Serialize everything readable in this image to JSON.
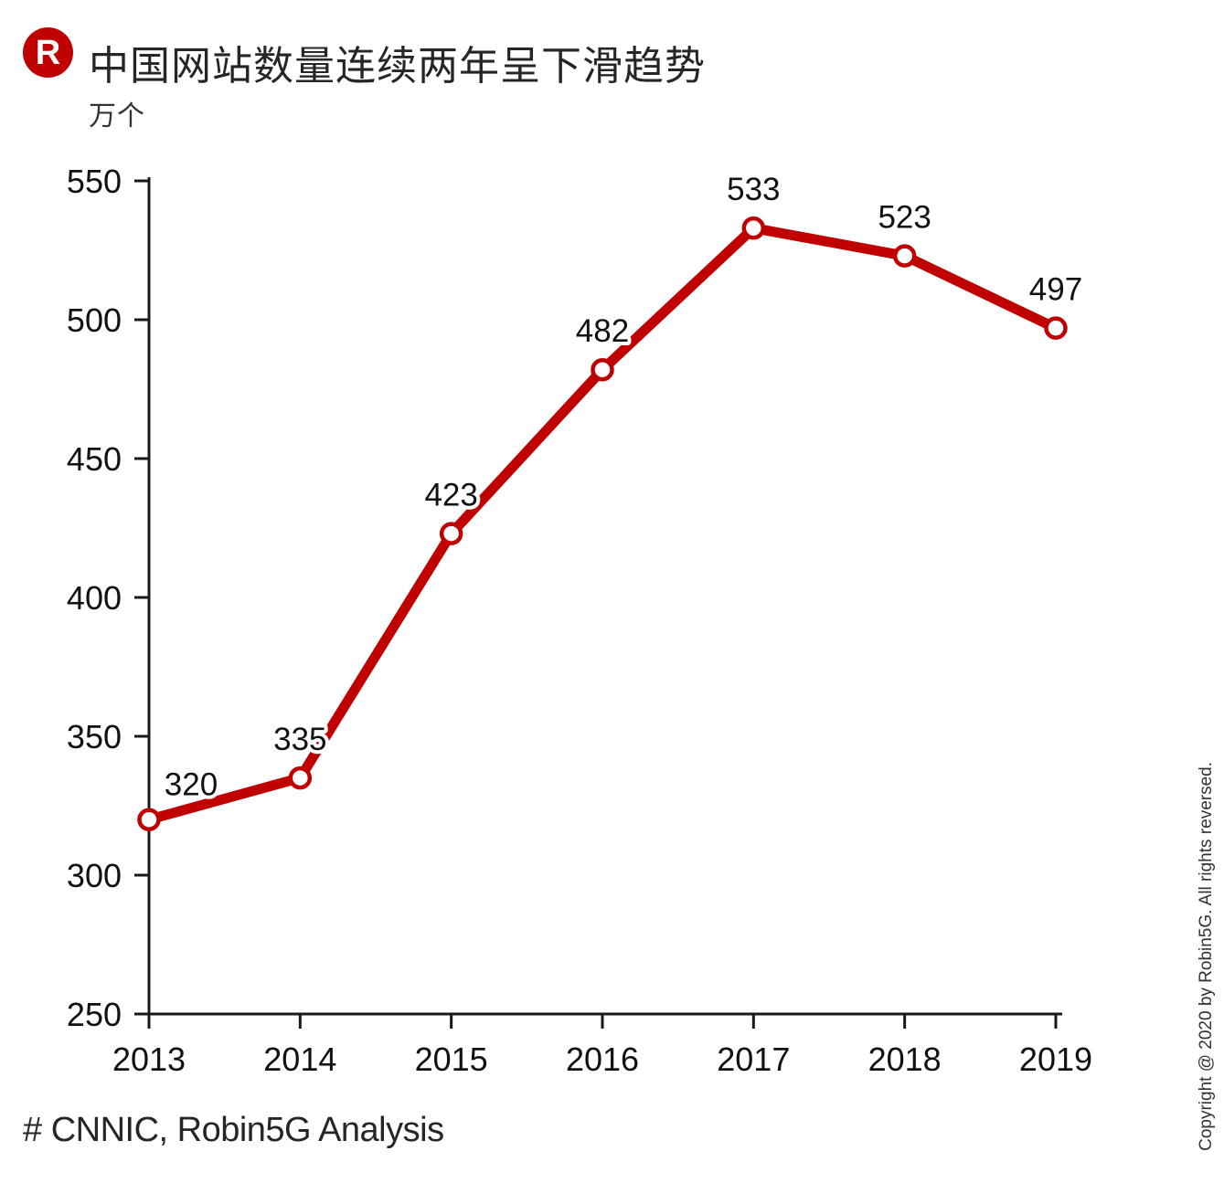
{
  "header": {
    "logo_letter": "R",
    "title": "中国网站数量连续两年呈下滑趋势",
    "unit_label": "万个"
  },
  "chart_data": {
    "type": "line",
    "title": "中国网站数量连续两年呈下滑趋势",
    "unit_label": "万个",
    "categories": [
      "2013",
      "2014",
      "2015",
      "2016",
      "2017",
      "2018",
      "2019"
    ],
    "values": [
      320,
      335,
      423,
      482,
      533,
      523,
      497
    ],
    "data_labels": true,
    "ylim": [
      250,
      550
    ],
    "yticks": [
      550,
      500,
      450,
      400,
      350,
      300,
      250
    ],
    "grid": false,
    "legend": "none",
    "line_color": "#c00000",
    "marker_style": "open-circle"
  },
  "footer": {
    "source_label": "# CNNIC, Robin5G Analysis"
  },
  "copyright_note": "Copyright @ 2020 by Robin5G. All rights reversed.",
  "colors": {
    "accent_red": "#c00000",
    "axis_black": "#1a1a1a",
    "label_text": "#111111",
    "background": "#ffffff"
  }
}
